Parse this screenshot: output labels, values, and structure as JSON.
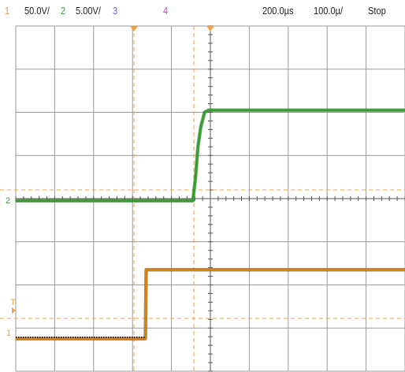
{
  "colors": {
    "ch1": "#e8a032",
    "ch2": "#3ca03c",
    "ch3": "#6a6ae0",
    "ch4": "#e040c0",
    "grid": "#9a9a9a",
    "text": "#222222",
    "trace1": "#d97f0f",
    "trace2": "#34a02c",
    "trace2_dark": "#1f6a1a",
    "trigger": "#f0a040"
  },
  "status_bar": {
    "ch1_num": "1",
    "ch1_scale": "50.0V/",
    "ch2_num": "2",
    "ch2_scale": "5.00V/",
    "ch3_num": "3",
    "ch4_num": "4",
    "time_offset": "200.0µs",
    "time_scale": "100.0µ/",
    "run_state": "Stop"
  },
  "markers": {
    "ch2_ground": "2",
    "ch1_ground": "1",
    "trigger_level": "T"
  },
  "chart_data": {
    "type": "line",
    "x_unit": "divisions",
    "y_unit": "divisions",
    "xlim": [
      0,
      10
    ],
    "ylim": [
      0,
      8
    ],
    "series": [
      {
        "x": [
          0,
          3.33,
          3.35,
          10
        ],
        "y": [
          0.75,
          0.75,
          2.35,
          2.35
        ]
      },
      {
        "x": [
          0,
          4.55,
          4.62,
          4.68,
          4.75,
          4.85,
          4.95,
          10
        ],
        "y": [
          3.95,
          3.95,
          4.5,
          5.2,
          5.65,
          6.0,
          6.05,
          6.05
        ]
      }
    ]
  }
}
